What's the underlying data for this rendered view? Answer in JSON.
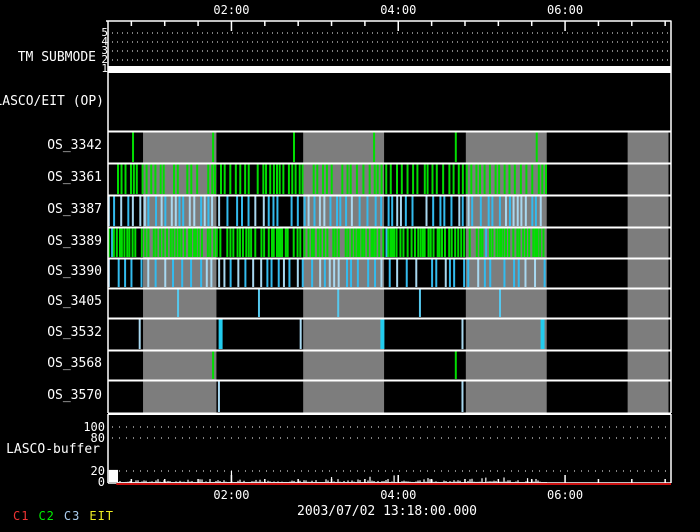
{
  "chart_data": {
    "type": "timeline",
    "description": "LASCO/EIT daily observing plan timeline with TM submode, observing-sequence event rows and LASCO buffer usage",
    "time_axis": {
      "start_hr": 0.52,
      "end_hr": 7.27,
      "major_ticks": [
        {
          "hr": 2,
          "label": "02:00"
        },
        {
          "hr": 4,
          "label": "04:00"
        },
        {
          "hr": 6,
          "label": "06:00"
        }
      ],
      "minor_first_hr": 0.8,
      "minor_step_hr": 0.4,
      "minor_count": 17
    },
    "submode": {
      "label": "TM SUBMODE",
      "yticks": [
        5,
        4,
        3,
        2,
        1
      ],
      "grid_levels": [
        5,
        4,
        3,
        2
      ],
      "value": 1,
      "bar_start_hr": 0.52,
      "bar_end_hr": 7.27,
      "bar_color": "#ffffff"
    },
    "op_row": {
      "label": "LASCO/EIT (OP)"
    },
    "gray_band_color": "#7d7d7d",
    "gray_bands_hr": [
      [
        0.94,
        1.82
      ],
      [
        2.86,
        3.83
      ],
      [
        4.81,
        5.78
      ],
      [
        6.75,
        7.24
      ]
    ],
    "os_rows": [
      {
        "label": "OS_3342",
        "color": "#00dd00",
        "width": 2,
        "ticks_hr": [
          0.82,
          1.78,
          2.75,
          3.71,
          4.69,
          5.66
        ]
      },
      {
        "label": "OS_3361",
        "color": "#00dd00",
        "dense": {
          "start_hr": 0.64,
          "end_hr": 5.78,
          "step_min": 3.3,
          "seed": 11,
          "alt_color": null,
          "alt_prob": 0
        }
      },
      {
        "label": "OS_3387",
        "color": "#33bbee",
        "dense": {
          "start_hr": 0.53,
          "end_hr": 5.78,
          "step_min": 4.3,
          "seed": 23,
          "alt_color": "#a8d8f0",
          "alt_prob": 0.35
        }
      },
      {
        "label": "OS_3389",
        "color": "#00dd00",
        "dense": {
          "start_hr": 0.53,
          "end_hr": 5.78,
          "step_min": 2.1,
          "seed": 37,
          "alt_color": "#33bbee",
          "alt_prob": 0.05
        }
      },
      {
        "label": "OS_3390",
        "color": "#33bbee",
        "dense": {
          "start_hr": 0.53,
          "end_hr": 5.78,
          "step_min": 5.2,
          "seed": 51,
          "alt_color": "#a8d8f0",
          "alt_prob": 0.3
        }
      },
      {
        "label": "OS_3405",
        "color": "#55c8ee",
        "width": 2,
        "ticks_hr": [
          1.36,
          2.33,
          3.28,
          4.26,
          5.22
        ]
      },
      {
        "label": "OS_3532",
        "color": "#a8d8f0",
        "width": 2,
        "ticks_hr": [
          0.9,
          2.83,
          4.77
        ],
        "ticks2_hr": [
          1.87,
          3.81,
          5.73
        ],
        "color2": "#22ccee",
        "width2": 4
      },
      {
        "label": "OS_3568",
        "color": "#00dd00",
        "width": 2,
        "ticks_hr": [
          1.78,
          4.69
        ]
      },
      {
        "label": "OS_3570",
        "color": "#a8d8f0",
        "width": 2,
        "ticks_hr": [
          1.85,
          4.77
        ]
      }
    ],
    "buffer": {
      "label": "LASCO-buffer",
      "ylim": [
        0,
        125
      ],
      "ytick_labels": [
        {
          "v": 100,
          "label": "100"
        },
        {
          "v": 80,
          "label": "80"
        },
        {
          "v": 20,
          "label": "20"
        },
        {
          "v": 0,
          "label": "0"
        }
      ],
      "grid_levels": [
        100,
        80,
        20
      ],
      "initial_block": {
        "start_hr": 0.53,
        "end_hr": 0.64,
        "value": 22
      },
      "noise": {
        "start_hr": 0.64,
        "end_hr": 5.78,
        "base_value": 4,
        "seed": 77,
        "spikes": [
          {
            "hr": 2.0,
            "value": 20
          },
          {
            "hr": 3.2,
            "value": 9
          },
          {
            "hr": 3.95,
            "value": 12
          },
          {
            "hr": 5.05,
            "value": 8
          },
          {
            "hr": 5.55,
            "value": 7
          }
        ]
      },
      "limit_line": {
        "value": 0,
        "color": "#cc1111",
        "start_hr": 0.62
      }
    },
    "legend": [
      {
        "label": "C1",
        "color": "#ee3333"
      },
      {
        "label": "C2",
        "color": "#00ee00"
      },
      {
        "label": "C3",
        "color": "#aaccee"
      },
      {
        "label": "EIT",
        "color": "#eeee22"
      }
    ],
    "footer_timestamp": "2003/07/02 13:18:00.000"
  }
}
